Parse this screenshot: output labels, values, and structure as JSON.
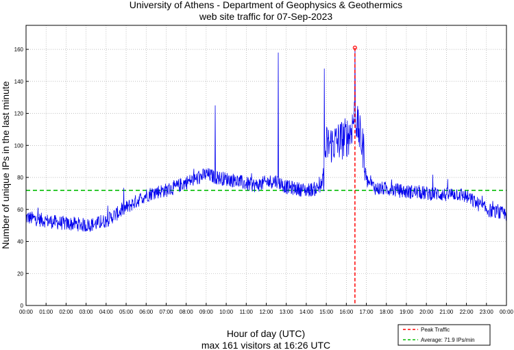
{
  "chart_data": {
    "type": "line",
    "title": "University of Athens - Department of Geophysics & Geothermics",
    "subtitle": "web site traffic for 07-Sep-2023",
    "xlabel": "Hour of day (UTC)",
    "xlabel_sub": "max 161 visitors at 16:26 UTC",
    "ylabel": "Number of unique IPs in the last minute",
    "xlim": [
      0,
      24
    ],
    "ylim": [
      0,
      175
    ],
    "grid": true,
    "x_tick_labels": [
      "00:00",
      "01:00",
      "02:00",
      "03:00",
      "04:00",
      "05:00",
      "06:00",
      "07:00",
      "08:00",
      "09:00",
      "10:00",
      "11:00",
      "12:00",
      "13:00",
      "14:00",
      "15:00",
      "16:00",
      "17:00",
      "18:00",
      "19:00",
      "20:00",
      "21:00",
      "22:00",
      "23:00",
      "00:00"
    ],
    "y_ticks": [
      0,
      20,
      40,
      60,
      80,
      100,
      120,
      140,
      160
    ],
    "series": [
      {
        "name": "Traffic",
        "color": "#0000ee",
        "x_hours": [
          0,
          0.5,
          1,
          1.5,
          2,
          2.5,
          3,
          3.5,
          4,
          4.5,
          5,
          5.5,
          6,
          6.5,
          7,
          7.5,
          8,
          8.5,
          9,
          9.5,
          10,
          10.5,
          11,
          11.5,
          12,
          12.5,
          13,
          13.5,
          14,
          14.5,
          14.8,
          15,
          15.5,
          16,
          16.2,
          16.43,
          16.6,
          16.9,
          17,
          17.5,
          18,
          18.5,
          19,
          19.5,
          20,
          20.5,
          21,
          21.5,
          22,
          22.5,
          23,
          23.5,
          24
        ],
        "y_values": [
          55,
          54,
          53,
          52,
          51,
          51,
          50,
          51,
          53,
          57,
          61,
          65,
          69,
          71,
          72,
          74,
          77,
          79,
          82,
          80,
          79,
          78,
          76,
          75,
          77,
          78,
          74,
          73,
          72,
          73,
          76,
          100,
          102,
          105,
          108,
          120,
          110,
          95,
          78,
          73,
          73,
          72,
          71,
          71,
          70,
          70,
          69,
          70,
          68,
          64,
          60,
          58,
          57
        ],
        "spikes": [
          {
            "x_hours": 9.45,
            "value": 125
          },
          {
            "x_hours": 12.6,
            "value": 158
          },
          {
            "x_hours": 14.9,
            "value": 148
          },
          {
            "x_hours": 16.43,
            "value": 161
          }
        ]
      }
    ],
    "reference_lines": [
      {
        "name": "Peak Traffic",
        "orientation": "vertical",
        "x_hours": 16.43,
        "color": "#ff0000",
        "style": "dashed"
      },
      {
        "name": "Average: 71.9 IPs/min",
        "orientation": "horizontal",
        "value": 71.9,
        "color": "#00bb00",
        "style": "dashed"
      }
    ],
    "peak_marker": {
      "x_hours": 16.43,
      "value": 161,
      "color": "#ff0000"
    },
    "legend": {
      "placement": "bottom-right",
      "entries": [
        {
          "label": "Peak Traffic",
          "color": "#ff0000",
          "style": "dashed"
        },
        {
          "label": "Average: 71.9 IPs/min",
          "color": "#00bb00",
          "style": "dashed"
        }
      ]
    }
  }
}
